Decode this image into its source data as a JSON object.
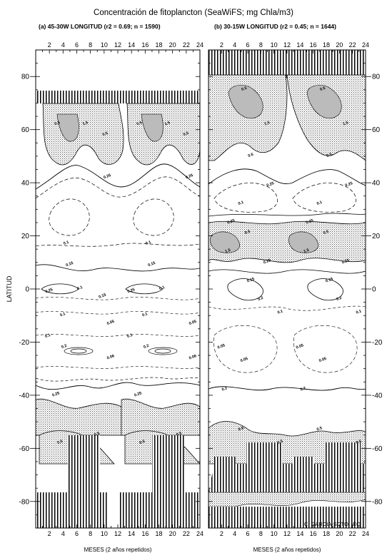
{
  "title": "Concentración de fitoplancton (SeaWiFS; mg Chla/m3)",
  "ylabel": "LATITUD",
  "credit": "C. GARCIA-SOTO, IEO",
  "chart_data": [
    {
      "type": "contour",
      "title": "(a) 45-30W LONGITUD (r2 = 0.69; n = 1590)",
      "xlabel": "MESES  (2 años repetidos)",
      "ylabel": "LATITUD",
      "x_ticks": [
        2,
        4,
        6,
        8,
        10,
        12,
        14,
        16,
        18,
        20,
        22,
        24
      ],
      "y_ticks": [
        -80,
        -60,
        -40,
        -20,
        0,
        20,
        40,
        60,
        80
      ],
      "xlim": [
        0,
        24
      ],
      "ylim": [
        -90,
        90
      ],
      "contour_labels": [
        {
          "x": 3.2,
          "lat": 62,
          "text": "0.5"
        },
        {
          "x": 7.3,
          "lat": 62,
          "text": "1.5"
        },
        {
          "x": 10.2,
          "lat": 58,
          "text": "0.5"
        },
        {
          "x": 15.2,
          "lat": 62,
          "text": "0.5"
        },
        {
          "x": 19.3,
          "lat": 62,
          "text": "1.5"
        },
        {
          "x": 22.0,
          "lat": 58,
          "text": "0.5"
        },
        {
          "x": 10.5,
          "lat": 42,
          "text": "0.25"
        },
        {
          "x": 22.5,
          "lat": 42,
          "text": "0.25"
        },
        {
          "x": 4.5,
          "lat": 17,
          "text": "0.1"
        },
        {
          "x": 16.5,
          "lat": 17,
          "text": "0.1"
        },
        {
          "x": 5.0,
          "lat": 9,
          "text": "0.15"
        },
        {
          "x": 17.0,
          "lat": 9,
          "text": "0.15"
        },
        {
          "x": 2.0,
          "lat": -1,
          "text": "0.25"
        },
        {
          "x": 6.5,
          "lat": 0,
          "text": "0.1"
        },
        {
          "x": 9.8,
          "lat": -3,
          "text": "0.15"
        },
        {
          "x": 14.0,
          "lat": -1,
          "text": "0.25"
        },
        {
          "x": 18.5,
          "lat": 0,
          "text": "0.1"
        },
        {
          "x": 4.0,
          "lat": -10,
          "text": "0.1"
        },
        {
          "x": 16.0,
          "lat": -10,
          "text": "0.1"
        },
        {
          "x": 11.0,
          "lat": -13,
          "text": "0.05"
        },
        {
          "x": 23.0,
          "lat": -13,
          "text": "0.05"
        },
        {
          "x": 1.8,
          "lat": -18,
          "text": "0.1"
        },
        {
          "x": 4.2,
          "lat": -22,
          "text": "0.2"
        },
        {
          "x": 13.8,
          "lat": -18,
          "text": "0.1"
        },
        {
          "x": 16.2,
          "lat": -22,
          "text": "0.2"
        },
        {
          "x": 11.0,
          "lat": -26,
          "text": "0.06"
        },
        {
          "x": 23.0,
          "lat": -26,
          "text": "0.06"
        },
        {
          "x": 3.0,
          "lat": -40,
          "text": "0.25"
        },
        {
          "x": 15.0,
          "lat": -40,
          "text": "0.25"
        },
        {
          "x": 3.6,
          "lat": -58,
          "text": "0.5"
        },
        {
          "x": 9.0,
          "lat": -55,
          "text": "0.5"
        },
        {
          "x": 15.6,
          "lat": -58,
          "text": "0.5"
        },
        {
          "x": 21.0,
          "lat": -55,
          "text": "0.5"
        }
      ]
    },
    {
      "type": "contour",
      "title": "(b) 30-15W LONGITUD (r2 = 0.45; n = 1644)",
      "xlabel": "MESES (2 años repetidos)",
      "x_ticks": [
        2,
        4,
        6,
        8,
        10,
        12,
        14,
        16,
        18,
        20,
        22,
        24
      ],
      "y_ticks": [
        -80,
        -60,
        -40,
        -20,
        0,
        20,
        40,
        60,
        80
      ],
      "xlim": [
        0,
        24
      ],
      "ylim": [
        -90,
        90
      ],
      "contour_labels": [
        {
          "x": 5.5,
          "lat": 75,
          "text": "0.5"
        },
        {
          "x": 17.5,
          "lat": 75,
          "text": "0.5"
        },
        {
          "x": 9.0,
          "lat": 62,
          "text": "1.5"
        },
        {
          "x": 21.0,
          "lat": 62,
          "text": "1.5"
        },
        {
          "x": 6.5,
          "lat": 50,
          "text": "0.5"
        },
        {
          "x": 18.5,
          "lat": 50,
          "text": "0.5"
        },
        {
          "x": 9.5,
          "lat": 39,
          "text": "0.25"
        },
        {
          "x": 21.5,
          "lat": 39,
          "text": "0.25"
        },
        {
          "x": 5.0,
          "lat": 32,
          "text": "0.1"
        },
        {
          "x": 17.0,
          "lat": 32,
          "text": "0.1"
        },
        {
          "x": 3.5,
          "lat": 25,
          "text": "0.25"
        },
        {
          "x": 15.5,
          "lat": 25,
          "text": "0.25"
        },
        {
          "x": 6.0,
          "lat": 21,
          "text": "0.5"
        },
        {
          "x": 18.0,
          "lat": 21,
          "text": "0.5"
        },
        {
          "x": 3.0,
          "lat": 14,
          "text": "1.5"
        },
        {
          "x": 15.0,
          "lat": 14,
          "text": "1.5"
        },
        {
          "x": 9.0,
          "lat": 10,
          "text": "0.25"
        },
        {
          "x": 21.0,
          "lat": 10,
          "text": "0.25"
        },
        {
          "x": 6.5,
          "lat": 3,
          "text": "0.15"
        },
        {
          "x": 18.5,
          "lat": 3,
          "text": "0.15"
        },
        {
          "x": 8.0,
          "lat": -4,
          "text": "0.2"
        },
        {
          "x": 20.0,
          "lat": -4,
          "text": "0.2"
        },
        {
          "x": 11.0,
          "lat": -9,
          "text": "0.1"
        },
        {
          "x": 23.0,
          "lat": -9,
          "text": "0.1"
        },
        {
          "x": 2.0,
          "lat": -22,
          "text": "0.05"
        },
        {
          "x": 14.0,
          "lat": -22,
          "text": "0.05"
        },
        {
          "x": 5.5,
          "lat": -27,
          "text": "0.05"
        },
        {
          "x": 17.5,
          "lat": -27,
          "text": "0.05"
        },
        {
          "x": 2.5,
          "lat": -38,
          "text": "0.2"
        },
        {
          "x": 14.5,
          "lat": -38,
          "text": "0.2"
        },
        {
          "x": 5.0,
          "lat": -53,
          "text": "0.5"
        },
        {
          "x": 17.0,
          "lat": -53,
          "text": "0.5"
        },
        {
          "x": 11.0,
          "lat": -58,
          "text": "0.5"
        },
        {
          "x": 23.0,
          "lat": -58,
          "text": "0.5"
        }
      ]
    }
  ]
}
